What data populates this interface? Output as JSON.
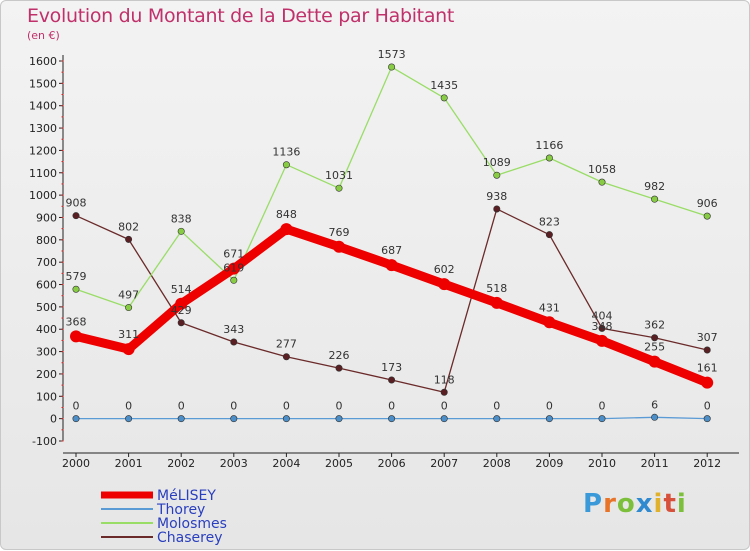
{
  "header": {
    "title": "Evolution du Montant de la Dette par Habitant",
    "unit": "(en €)"
  },
  "logo": "Proxiti",
  "chart_data": {
    "type": "line",
    "title": "Evolution du Montant de la Dette par Habitant",
    "ylabel": "(en €)",
    "xlabel": "",
    "x": [
      "2000",
      "2001",
      "2002",
      "2003",
      "2004",
      "2005",
      "2006",
      "2007",
      "2008",
      "2009",
      "2010",
      "2011",
      "2012"
    ],
    "ylim": [
      -100,
      1600
    ],
    "yticks": [
      -100,
      0,
      100,
      200,
      300,
      400,
      500,
      600,
      700,
      800,
      900,
      1000,
      1100,
      1200,
      1300,
      1400,
      1500,
      1600
    ],
    "grid": false,
    "legend": "bottom-left",
    "series": [
      {
        "name": "MéLISEY",
        "color": "#ee0000",
        "values": [
          368,
          311,
          514,
          671,
          848,
          769,
          687,
          602,
          518,
          431,
          348,
          255,
          161
        ]
      },
      {
        "name": "Thorey",
        "color": "#5b9bd5",
        "values": [
          0,
          0,
          0,
          0,
          0,
          0,
          0,
          0,
          0,
          0,
          0,
          6,
          0
        ]
      },
      {
        "name": "Molosmes",
        "color": "#99dd66",
        "values": [
          579,
          497,
          838,
          619,
          1136,
          1031,
          1573,
          1435,
          1089,
          1166,
          1058,
          982,
          906
        ]
      },
      {
        "name": "Chaserey",
        "color": "#6b2a2a",
        "values": [
          908,
          802,
          429,
          343,
          277,
          226,
          173,
          118,
          938,
          823,
          404,
          362,
          307
        ]
      }
    ]
  }
}
